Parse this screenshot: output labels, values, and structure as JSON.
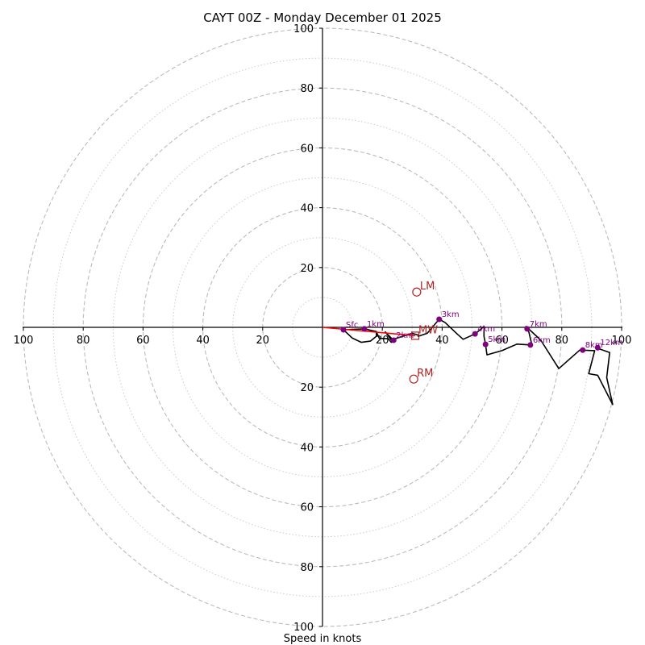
{
  "chart_data": {
    "type": "hodograph",
    "title": "CAYT 00Z - Monday December 01 2025",
    "xlabel": "Speed in knots",
    "range_knots": 100,
    "ring_major": [
      20,
      40,
      60,
      80,
      100
    ],
    "ring_minor": [
      10,
      30,
      50,
      70,
      90
    ],
    "x_ticks": [
      "100",
      "80",
      "60",
      "40",
      "20",
      "20",
      "40",
      "60",
      "80",
      "100"
    ],
    "y_ticks_top": [
      "100",
      "80",
      "60",
      "40",
      "20"
    ],
    "y_ticks_bottom": [
      "20",
      "40",
      "60",
      "80",
      "100"
    ],
    "hodo_path_uv": [
      [
        7,
        -0.8
      ],
      [
        14,
        -0.5
      ],
      [
        18,
        -1.4
      ],
      [
        18,
        -3
      ],
      [
        16,
        -4.6
      ],
      [
        13,
        -5
      ],
      [
        10,
        -3.6
      ],
      [
        7,
        -0.8
      ],
      [
        14,
        -0.5
      ],
      [
        18,
        -1.5
      ],
      [
        19,
        -3.7
      ],
      [
        22,
        -3.8
      ],
      [
        23,
        -5
      ],
      [
        24,
        -4.6
      ],
      [
        22,
        -2.6
      ],
      [
        23.5,
        -4.3
      ],
      [
        21,
        -1.5
      ],
      [
        23,
        -4.2
      ],
      [
        30,
        -2
      ],
      [
        32,
        -2.6
      ],
      [
        32,
        -3
      ],
      [
        35,
        -2
      ],
      [
        39,
        2.7
      ],
      [
        41,
        1.6
      ],
      [
        45,
        -2.2
      ],
      [
        47,
        -4
      ],
      [
        51,
        -2.2
      ],
      [
        54,
        0.3
      ],
      [
        54,
        -3
      ],
      [
        54.5,
        -5.7
      ],
      [
        55,
        -9.2
      ],
      [
        60,
        -7.8
      ],
      [
        65,
        -5.6
      ],
      [
        70,
        -5.9
      ],
      [
        69,
        -1.6
      ],
      [
        68,
        0.3
      ],
      [
        70,
        -1.5
      ],
      [
        73,
        -4.3
      ],
      [
        79,
        -13.8
      ],
      [
        86,
        -7.6
      ],
      [
        91,
        -7.8
      ],
      [
        89,
        -15.5
      ],
      [
        92,
        -16
      ],
      [
        97,
        -25.8
      ],
      [
        95,
        -16.8
      ],
      [
        96,
        -8.4
      ],
      [
        92,
        -7
      ]
    ],
    "levels": [
      {
        "label": "Sfc",
        "u": 7,
        "v": -0.8
      },
      {
        "label": "1km",
        "u": 14,
        "v": -0.5
      },
      {
        "label": "2km",
        "u": 23.8,
        "v": -4.3
      },
      {
        "label": "3km",
        "u": 39,
        "v": 2.7
      },
      {
        "label": "4km",
        "u": 51,
        "v": -2.2
      },
      {
        "label": "5km",
        "u": 54.5,
        "v": -5.7
      },
      {
        "label": "6km",
        "u": 69.5,
        "v": -5.9
      },
      {
        "label": "7km",
        "u": 68.4,
        "v": -0.5
      },
      {
        "label": "8km",
        "u": 87,
        "v": -7.6
      },
      {
        "label": "12km",
        "u": 92,
        "v": -6.8
      }
    ],
    "motions": [
      {
        "label": "LM",
        "u": 31.5,
        "v": 11.8,
        "marker": "circle"
      },
      {
        "label": "RM",
        "u": 30.5,
        "v": -17.3,
        "marker": "circle"
      },
      {
        "label": "MW",
        "u": 31,
        "v": -2.8,
        "marker": "square"
      }
    ],
    "mean_wind_line_uv": [
      [
        0,
        0
      ],
      [
        31,
        -2.8
      ]
    ],
    "colors": {
      "path": "#000000",
      "levels": "#800080",
      "motion": "#b22222",
      "mean_line": "#ff0000",
      "grid": "#bbbbbb"
    }
  }
}
